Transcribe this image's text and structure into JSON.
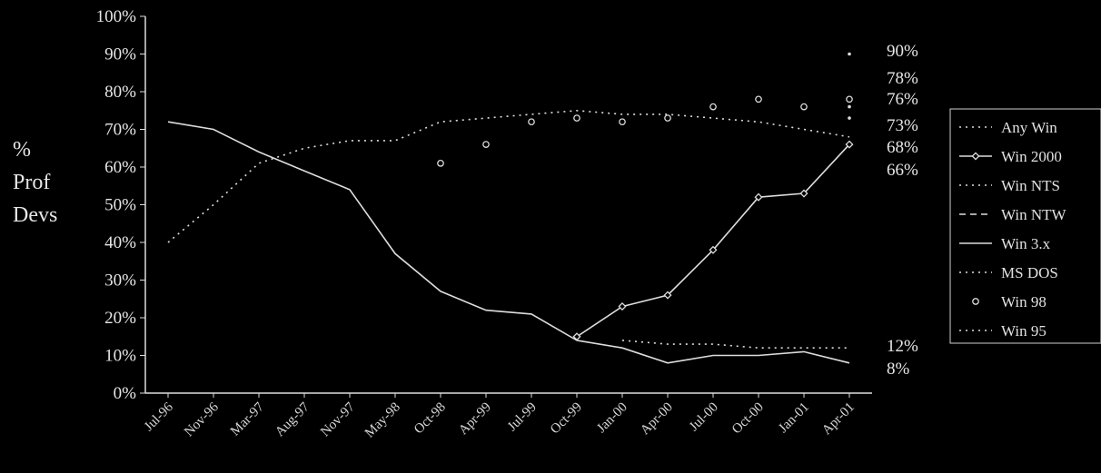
{
  "chart_data": {
    "type": "line",
    "ylabel_lines": [
      "%",
      "Prof",
      "Devs"
    ],
    "ylim": [
      0,
      100
    ],
    "yticks": [
      {
        "v": 0,
        "label": "0%"
      },
      {
        "v": 10,
        "label": "10%"
      },
      {
        "v": 20,
        "label": "20%"
      },
      {
        "v": 30,
        "label": "30%"
      },
      {
        "v": 40,
        "label": "40%"
      },
      {
        "v": 50,
        "label": "50%"
      },
      {
        "v": 60,
        "label": "60%"
      },
      {
        "v": 70,
        "label": "70%"
      },
      {
        "v": 80,
        "label": "80%"
      },
      {
        "v": 90,
        "label": "90%"
      },
      {
        "v": 100,
        "label": "100%"
      }
    ],
    "categories": [
      "Jul-96",
      "Nov-96",
      "Mar-97",
      "Aug-97",
      "Nov-97",
      "May-98",
      "Oct-98",
      "Apr-99",
      "Jul-99",
      "Oct-99",
      "Jan-00",
      "Apr-00",
      "Jul-00",
      "Oct-00",
      "Jan-01",
      "Apr-01"
    ],
    "grid": false,
    "legend_position": "right",
    "colors": {
      "background": "#000000",
      "axis": "#dddddd",
      "text": "#e6e6e6",
      "line": "#dddddd"
    },
    "series": [
      {
        "name": "Any Win",
        "marker": "none",
        "dash": "dot",
        "values": [
          null,
          null,
          null,
          null,
          null,
          null,
          null,
          null,
          null,
          null,
          null,
          null,
          null,
          null,
          null,
          90
        ]
      },
      {
        "name": "Win 2000",
        "marker": "diamond",
        "dash": "solid",
        "values": [
          null,
          null,
          null,
          null,
          null,
          null,
          null,
          null,
          null,
          15,
          23,
          26,
          38,
          52,
          53,
          66
        ]
      },
      {
        "name": "Win NTS",
        "marker": "none",
        "dash": "dot",
        "values": [
          null,
          null,
          null,
          null,
          null,
          null,
          null,
          null,
          null,
          null,
          null,
          null,
          null,
          null,
          null,
          76
        ]
      },
      {
        "name": "Win NTW",
        "marker": "none",
        "dash": "dash",
        "values": [
          null,
          null,
          null,
          null,
          null,
          null,
          null,
          null,
          null,
          null,
          null,
          null,
          null,
          null,
          null,
          73
        ]
      },
      {
        "name": "Win 3.x",
        "marker": "none",
        "dash": "solid",
        "values": [
          72,
          70,
          64,
          59,
          54,
          37,
          27,
          22,
          21,
          14,
          12,
          8,
          10,
          10,
          11,
          8
        ]
      },
      {
        "name": "MS DOS",
        "marker": "none",
        "dash": "dot",
        "values": [
          null,
          null,
          null,
          null,
          null,
          null,
          null,
          null,
          null,
          null,
          14,
          13,
          13,
          12,
          12,
          12
        ]
      },
      {
        "name": "Win 98",
        "marker": "circle",
        "dash": "none",
        "values": [
          null,
          null,
          null,
          null,
          null,
          null,
          61,
          66,
          72,
          73,
          72,
          73,
          76,
          78,
          76,
          78
        ]
      },
      {
        "name": "Win 95",
        "marker": "none",
        "dash": "dot",
        "values": [
          40,
          50,
          61,
          65,
          67,
          67,
          72,
          73,
          74,
          75,
          74,
          74,
          73,
          72,
          70,
          68
        ]
      }
    ],
    "end_labels": [
      "90%",
      "78%",
      "76%",
      "73%",
      "68%",
      "66%",
      "12%",
      "8%"
    ]
  }
}
